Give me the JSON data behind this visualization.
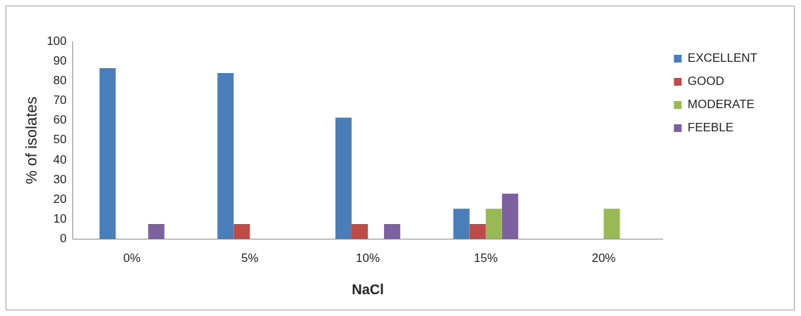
{
  "chart_data": {
    "type": "bar",
    "xlabel": "NaCl",
    "ylabel": "% of isolates",
    "categories": [
      "0%",
      "5%",
      "10%",
      "15%",
      "20%"
    ],
    "series": [
      {
        "name": "EXCELLENT",
        "color": "#4a7ebb",
        "values": [
          86.5,
          84,
          61.5,
          15.4,
          0
        ]
      },
      {
        "name": "GOOD",
        "color": "#be4b48",
        "values": [
          0,
          7.7,
          7.7,
          7.7,
          0
        ]
      },
      {
        "name": "MODERATE",
        "color": "#98b954",
        "values": [
          0,
          0,
          0,
          15.4,
          15.4
        ]
      },
      {
        "name": "FEEBLE",
        "color": "#7d60a0",
        "values": [
          7.7,
          0,
          7.7,
          23,
          0
        ]
      }
    ],
    "ylim": [
      0,
      100
    ],
    "yticks": [
      0,
      10,
      20,
      30,
      40,
      50,
      60,
      70,
      80,
      90,
      100
    ],
    "grid": false,
    "legend": "top right"
  }
}
